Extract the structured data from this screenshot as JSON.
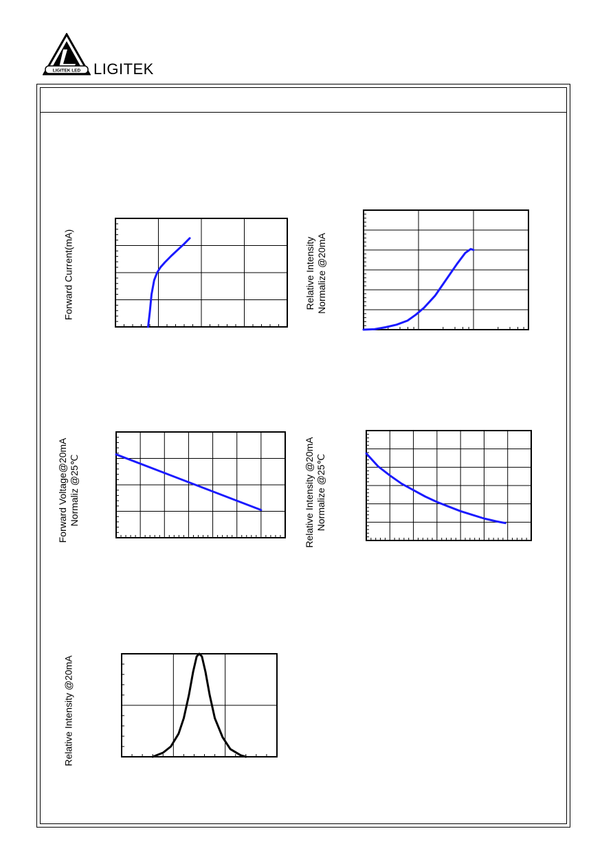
{
  "header": {
    "brand": "LIGITEK",
    "logo_text": "LIGITEK LED"
  },
  "colors": {
    "curve_blue": "#1a1aff",
    "curve_black": "#000000",
    "frame": "#000000"
  },
  "chart_data": [
    {
      "id": "forward-current-vs-voltage",
      "type": "line",
      "ylabel": "Forward Current(mA)",
      "xlim": [
        0,
        4
      ],
      "ylim": [
        0,
        4
      ],
      "grid": true,
      "series": [
        {
          "color": "#1a1aff",
          "x": [
            0.76,
            0.8,
            0.84,
            0.9,
            0.97,
            1.05,
            1.15,
            1.3,
            1.45,
            1.6,
            1.73
          ],
          "y": [
            0.0,
            0.55,
            1.2,
            1.72,
            2.0,
            2.2,
            2.38,
            2.62,
            2.84,
            3.06,
            3.27
          ]
        }
      ]
    },
    {
      "id": "relative-intensity-vs-current",
      "type": "line",
      "ylabel_lines": [
        "Relative Intensity",
        "Normalize @20mA"
      ],
      "xlim": [
        0,
        3
      ],
      "ylim": [
        0,
        6
      ],
      "xscale": "log",
      "grid": true,
      "series": [
        {
          "color": "#1a1aff",
          "x": [
            0.0,
            0.2,
            0.4,
            0.6,
            0.8,
            0.95,
            1.1,
            1.3,
            1.5,
            1.7,
            1.85,
            1.95,
            2.0
          ],
          "y": [
            0.0,
            0.02,
            0.12,
            0.25,
            0.45,
            0.75,
            1.1,
            1.7,
            2.5,
            3.3,
            3.85,
            4.05,
            4.0
          ]
        }
      ]
    },
    {
      "id": "forward-voltage-vs-temperature",
      "type": "line",
      "ylabel_lines": [
        "Forward Voltage@20mA",
        "Normaliz @25℃"
      ],
      "xlim": [
        0,
        7
      ],
      "ylim": [
        0,
        4
      ],
      "grid": true,
      "series": [
        {
          "color": "#1a1aff",
          "x": [
            0.0,
            6.0
          ],
          "y": [
            3.15,
            1.05
          ]
        }
      ]
    },
    {
      "id": "relative-intensity-vs-temperature",
      "type": "line",
      "ylabel_lines": [
        "Relative Intensity @20mA",
        "Normalize @25℃"
      ],
      "xlim": [
        0,
        7
      ],
      "ylim": [
        0,
        6
      ],
      "grid": true,
      "series": [
        {
          "color": "#1a1aff",
          "x": [
            0.0,
            0.5,
            1.0,
            1.5,
            2.0,
            2.5,
            3.0,
            3.5,
            4.0,
            4.5,
            5.0,
            5.5,
            5.9
          ],
          "y": [
            4.75,
            4.05,
            3.55,
            3.1,
            2.75,
            2.4,
            2.1,
            1.85,
            1.6,
            1.4,
            1.2,
            1.05,
            0.95
          ]
        }
      ]
    },
    {
      "id": "spectral-distribution",
      "type": "line",
      "ylabel": "Relative Intensity @20mA",
      "xlim": [
        0,
        3
      ],
      "ylim": [
        0,
        2
      ],
      "grid": true,
      "series": [
        {
          "color": "#000000",
          "x": [
            0.6,
            0.8,
            0.95,
            1.1,
            1.2,
            1.3,
            1.38,
            1.45,
            1.5,
            1.55,
            1.62,
            1.7,
            1.8,
            1.95,
            2.1,
            2.3,
            2.4
          ],
          "y": [
            0.0,
            0.08,
            0.2,
            0.45,
            0.75,
            1.2,
            1.65,
            1.95,
            2.0,
            1.95,
            1.65,
            1.2,
            0.75,
            0.38,
            0.15,
            0.03,
            0.0
          ]
        }
      ]
    }
  ]
}
